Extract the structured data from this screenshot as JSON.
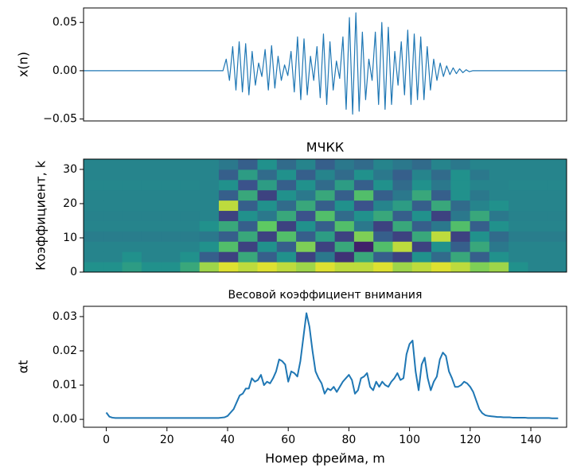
{
  "chart_data": [
    {
      "type": "line",
      "y_label": "x(n)",
      "color": "#1f77b4",
      "ylim": [
        -0.052,
        0.065
      ],
      "yticks": [
        {
          "value": -0.05,
          "label": "−0.05"
        },
        {
          "value": 0,
          "label": "0.00"
        },
        {
          "value": 0.05,
          "label": "0.05"
        }
      ],
      "values": [
        0,
        0,
        0,
        0,
        0,
        0,
        0,
        0,
        0,
        0,
        0,
        0,
        0,
        0,
        0,
        0,
        0,
        0,
        0,
        0,
        0,
        0,
        0,
        0,
        0,
        0,
        0,
        0,
        0,
        0,
        0,
        0,
        0,
        0,
        0,
        0,
        0,
        0,
        0,
        0,
        0,
        0,
        0,
        0,
        0.012,
        -0.01,
        0.025,
        -0.02,
        0.03,
        -0.022,
        0.028,
        -0.025,
        0.02,
        -0.015,
        0.008,
        -0.006,
        0.022,
        -0.02,
        0.026,
        -0.018,
        0.015,
        -0.01,
        0.006,
        -0.005,
        0.02,
        -0.022,
        0.035,
        -0.03,
        0.033,
        -0.025,
        0.015,
        -0.01,
        0.025,
        -0.028,
        0.038,
        -0.035,
        0.03,
        -0.02,
        0.01,
        -0.008,
        0.035,
        -0.04,
        0.055,
        -0.045,
        0.06,
        -0.042,
        0.04,
        -0.03,
        0.012,
        -0.01,
        0.04,
        -0.035,
        0.05,
        -0.04,
        0.045,
        -0.035,
        0.02,
        -0.015,
        0.03,
        -0.025,
        0.042,
        -0.035,
        0.038,
        -0.03,
        0.035,
        -0.03,
        0.025,
        -0.02,
        0.012,
        -0.01,
        0.008,
        -0.006,
        0.005,
        -0.004,
        0.003,
        -0.003,
        0.002,
        -0.002,
        0.001,
        -0.001,
        0,
        0,
        0,
        0,
        0,
        0,
        0,
        0,
        0,
        0,
        0,
        0,
        0,
        0,
        0,
        0,
        0,
        0,
        0,
        0,
        0,
        0,
        0,
        0,
        0,
        0,
        0,
        0,
        0,
        0
      ]
    },
    {
      "type": "heatmap",
      "title": "МЧКК",
      "y_label": "Коэффициент, k",
      "ylim": [
        0,
        33
      ],
      "yticks": [
        0,
        10,
        20,
        30
      ],
      "z": [
        [
          0.5,
          0.5,
          0.55,
          0.5,
          0.5,
          0.6,
          0.85,
          0.95,
          0.9,
          0.95,
          0.9,
          0.85,
          0.95,
          0.9,
          0.9,
          0.95,
          0.85,
          0.9,
          0.95,
          0.9,
          0.8,
          0.85,
          0.5,
          0.45,
          0.45
        ],
        [
          0.45,
          0.45,
          0.5,
          0.45,
          0.45,
          0.5,
          0.3,
          0.2,
          0.6,
          0.3,
          0.5,
          0.2,
          0.4,
          0.15,
          0.6,
          0.3,
          0.2,
          0.5,
          0.35,
          0.6,
          0.3,
          0.5,
          0.45,
          0.45,
          0.45
        ],
        [
          0.45,
          0.45,
          0.45,
          0.45,
          0.45,
          0.45,
          0.5,
          0.7,
          0.2,
          0.5,
          0.3,
          0.8,
          0.2,
          0.6,
          0.1,
          0.7,
          0.9,
          0.2,
          0.5,
          0.3,
          0.6,
          0.4,
          0.45,
          0.45,
          0.45
        ],
        [
          0.42,
          0.42,
          0.42,
          0.42,
          0.42,
          0.42,
          0.4,
          0.3,
          0.6,
          0.2,
          0.7,
          0.3,
          0.55,
          0.2,
          0.8,
          0.3,
          0.2,
          0.6,
          0.9,
          0.2,
          0.5,
          0.35,
          0.42,
          0.42,
          0.42
        ],
        [
          0.45,
          0.45,
          0.45,
          0.45,
          0.45,
          0.45,
          0.5,
          0.6,
          0.3,
          0.75,
          0.2,
          0.5,
          0.3,
          0.7,
          0.4,
          0.2,
          0.6,
          0.3,
          0.4,
          0.7,
          0.3,
          0.5,
          0.45,
          0.45,
          0.45
        ],
        [
          0.44,
          0.44,
          0.44,
          0.44,
          0.44,
          0.44,
          0.45,
          0.2,
          0.5,
          0.4,
          0.6,
          0.25,
          0.7,
          0.35,
          0.5,
          0.6,
          0.3,
          0.5,
          0.2,
          0.4,
          0.6,
          0.4,
          0.44,
          0.44,
          0.44
        ],
        [
          0.45,
          0.45,
          0.45,
          0.45,
          0.45,
          0.45,
          0.45,
          0.9,
          0.3,
          0.5,
          0.35,
          0.6,
          0.3,
          0.5,
          0.25,
          0.45,
          0.55,
          0.3,
          0.6,
          0.35,
          0.45,
          0.5,
          0.45,
          0.45,
          0.45
        ],
        [
          0.45,
          0.45,
          0.45,
          0.45,
          0.45,
          0.45,
          0.45,
          0.3,
          0.6,
          0.2,
          0.5,
          0.4,
          0.6,
          0.3,
          0.7,
          0.3,
          0.4,
          0.6,
          0.3,
          0.5,
          0.4,
          0.45,
          0.45,
          0.45,
          0.45
        ],
        [
          0.46,
          0.46,
          0.46,
          0.46,
          0.46,
          0.46,
          0.45,
          0.5,
          0.25,
          0.55,
          0.3,
          0.5,
          0.35,
          0.55,
          0.3,
          0.5,
          0.35,
          0.5,
          0.4,
          0.5,
          0.45,
          0.45,
          0.46,
          0.46,
          0.46
        ],
        [
          0.45,
          0.45,
          0.45,
          0.45,
          0.45,
          0.45,
          0.45,
          0.3,
          0.55,
          0.35,
          0.5,
          0.3,
          0.45,
          0.35,
          0.5,
          0.4,
          0.3,
          0.45,
          0.35,
          0.5,
          0.4,
          0.45,
          0.45,
          0.45,
          0.45
        ],
        [
          0.45,
          0.45,
          0.45,
          0.45,
          0.45,
          0.45,
          0.45,
          0.4,
          0.3,
          0.5,
          0.35,
          0.45,
          0.3,
          0.4,
          0.35,
          0.45,
          0.4,
          0.35,
          0.45,
          0.4,
          0.45,
          0.45,
          0.45,
          0.45,
          0.45
        ]
      ]
    },
    {
      "type": "line",
      "title": "Весовой коэффициент внимания",
      "y_label": "αt",
      "x_label": "Номер фрейма, m",
      "color": "#1f77b4",
      "xlim": [
        -7.5,
        151.8
      ],
      "xticks": [
        0,
        20,
        40,
        60,
        80,
        100,
        120,
        140
      ],
      "ylim": [
        -0.0023,
        0.033
      ],
      "yticks": [
        {
          "value": 0,
          "label": "0.00"
        },
        {
          "value": 0.01,
          "label": "0.01"
        },
        {
          "value": 0.02,
          "label": "0.02"
        },
        {
          "value": 0.03,
          "label": "0.03"
        }
      ],
      "values": [
        0.002,
        0.0008,
        0.0005,
        0.0004,
        0.0004,
        0.0004,
        0.0004,
        0.0004,
        0.0004,
        0.0004,
        0.0004,
        0.0004,
        0.0004,
        0.0004,
        0.0004,
        0.0004,
        0.0004,
        0.0004,
        0.0004,
        0.0004,
        0.0004,
        0.0004,
        0.0004,
        0.0004,
        0.0004,
        0.0004,
        0.0004,
        0.0004,
        0.0004,
        0.0004,
        0.0004,
        0.0004,
        0.0004,
        0.0004,
        0.0004,
        0.0004,
        0.0004,
        0.0004,
        0.0005,
        0.0006,
        0.001,
        0.002,
        0.003,
        0.005,
        0.007,
        0.0075,
        0.009,
        0.009,
        0.012,
        0.011,
        0.0115,
        0.013,
        0.01,
        0.011,
        0.0105,
        0.012,
        0.014,
        0.0175,
        0.017,
        0.016,
        0.011,
        0.014,
        0.0135,
        0.0125,
        0.017,
        0.024,
        0.031,
        0.027,
        0.02,
        0.014,
        0.012,
        0.0105,
        0.0075,
        0.009,
        0.0085,
        0.0095,
        0.008,
        0.0095,
        0.011,
        0.012,
        0.013,
        0.0115,
        0.0075,
        0.0085,
        0.012,
        0.0125,
        0.0135,
        0.0095,
        0.0085,
        0.011,
        0.0095,
        0.011,
        0.01,
        0.0095,
        0.011,
        0.012,
        0.0135,
        0.0115,
        0.012,
        0.019,
        0.022,
        0.023,
        0.014,
        0.0085,
        0.016,
        0.018,
        0.012,
        0.0085,
        0.011,
        0.0125,
        0.0175,
        0.0195,
        0.0185,
        0.014,
        0.012,
        0.0095,
        0.0095,
        0.01,
        0.011,
        0.0105,
        0.0095,
        0.008,
        0.0055,
        0.003,
        0.0018,
        0.0012,
        0.001,
        0.0009,
        0.0008,
        0.0007,
        0.0007,
        0.0006,
        0.0006,
        0.0006,
        0.0005,
        0.0005,
        0.0005,
        0.0005,
        0.0005,
        0.0004,
        0.0004,
        0.0004,
        0.0004,
        0.0004,
        0.0004,
        0.0004,
        0.0004,
        0.0003,
        0.0003,
        0.0003
      ]
    }
  ]
}
